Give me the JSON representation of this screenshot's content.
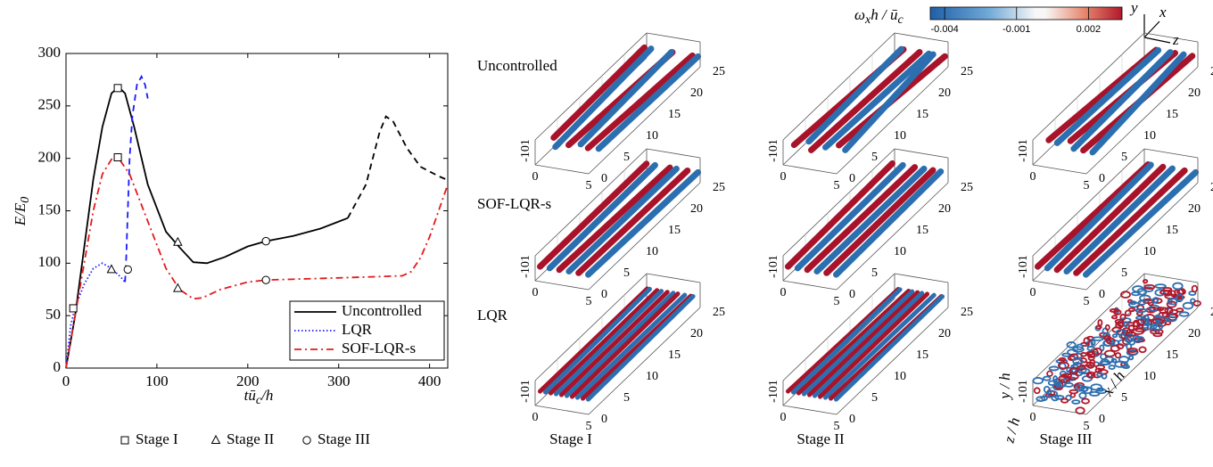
{
  "chart_data": {
    "type": "line",
    "xlabel": {
      "main": "tū",
      "sub": "c",
      "tail": "/h"
    },
    "ylabel": {
      "main": "E/E",
      "sub": "0"
    },
    "xlim": [
      0,
      420
    ],
    "ylim": [
      0,
      300
    ],
    "xticks": [
      0,
      100,
      200,
      300,
      400
    ],
    "yticks": [
      0,
      50,
      100,
      150,
      200,
      250,
      300
    ],
    "grid": false,
    "legend": "lower right",
    "series": [
      {
        "name": "Uncontrolled",
        "color": "#000000",
        "dash": "solid",
        "x": [
          0,
          10,
          20,
          30,
          40,
          50,
          58,
          65,
          75,
          90,
          110,
          125,
          140,
          155,
          175,
          200,
          220,
          250,
          280,
          310
        ],
        "values": [
          0,
          50,
          115,
          180,
          230,
          262,
          268,
          262,
          230,
          175,
          130,
          115,
          101,
          100,
          106,
          116,
          121,
          126,
          133,
          143
        ],
        "ext_dash": "dashed",
        "ext_x": [
          310,
          330,
          345,
          352,
          360,
          375,
          390,
          410,
          418
        ],
        "ext_values": [
          143,
          175,
          225,
          240,
          235,
          210,
          192,
          183,
          180
        ]
      },
      {
        "name": "LQR",
        "color": "#1a1aff",
        "dash": "dotted",
        "x": [
          0,
          5,
          10,
          20,
          30,
          40,
          50,
          60,
          65
        ],
        "values": [
          0,
          40,
          58,
          80,
          95,
          100,
          95,
          87,
          82
        ],
        "ext_dash": "dashed",
        "ext_x": [
          65,
          66,
          68,
          70,
          73,
          78,
          83,
          87,
          90
        ],
        "ext_values": [
          82,
          100,
          150,
          200,
          240,
          270,
          278,
          270,
          257
        ]
      },
      {
        "name": "SOF-LQR-s",
        "color": "#e31a1c",
        "dash": "dashdot",
        "x": [
          0,
          10,
          20,
          30,
          40,
          50,
          58,
          70,
          90,
          110,
          125,
          140,
          150,
          170,
          200,
          220,
          260,
          300,
          370,
          380,
          390,
          400,
          410,
          420
        ],
        "values": [
          0,
          50,
          100,
          150,
          185,
          199,
          200,
          185,
          140,
          95,
          75,
          66,
          67,
          75,
          82,
          84,
          85,
          86,
          88,
          92,
          105,
          125,
          150,
          175
        ]
      }
    ],
    "markers": [
      {
        "name": "Stage I",
        "symbol": "square",
        "x": [
          8,
          57,
          57
        ],
        "values": [
          57,
          267,
          201
        ]
      },
      {
        "name": "Stage II",
        "symbol": "triangle",
        "x": [
          50,
          123,
          123
        ],
        "values": [
          94,
          120,
          76
        ]
      },
      {
        "name": "Stage III",
        "symbol": "circle",
        "x": [
          68,
          220,
          220
        ],
        "values": [
          94,
          121,
          84
        ]
      }
    ]
  },
  "row_labels": [
    "Uncontrolled",
    "SOF-LQR-s",
    "LQR"
  ],
  "column_labels": [
    "Stage I",
    "Stage II",
    "Stage III"
  ],
  "colorbar": {
    "title": {
      "main": "ω",
      "sub": "x",
      "mid": "h / ū",
      "sub2": "c"
    },
    "clim": [
      -0.0046,
      0.0034
    ],
    "ticks": [
      -0.004,
      -0.001,
      0.002
    ]
  },
  "triad": {
    "y": "y",
    "x": "x",
    "z": "z"
  },
  "panel_axes": {
    "x_ticks": [
      0,
      5,
      10,
      15,
      20,
      25
    ],
    "z_ticks": [
      0,
      5
    ],
    "y_ticks": "-101",
    "x_label": "x / h",
    "y_label": "y / h",
    "z_label": "z / h"
  }
}
